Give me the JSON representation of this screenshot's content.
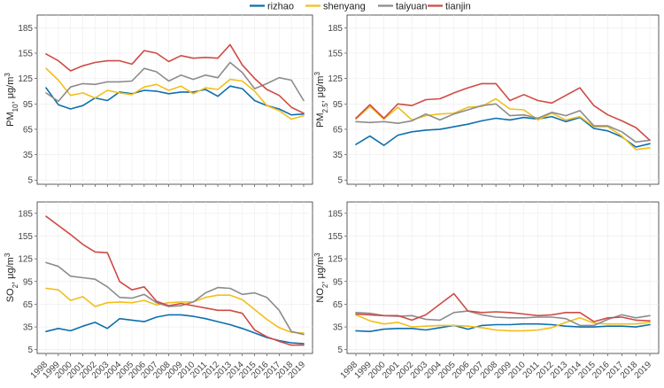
{
  "chart_data": {
    "type": "line",
    "legend": {
      "placement": "top-center",
      "entries": [
        {
          "name": "rizhao",
          "color": "#0d6fae"
        },
        {
          "name": "shenyang",
          "color": "#f2bf1a"
        },
        {
          "name": "taiyuan",
          "color": "#8c8c8c"
        },
        {
          "name": "tianjin",
          "color": "#cf4b45"
        }
      ]
    },
    "x": [
      "1998",
      "1999",
      "2000",
      "2001",
      "2002",
      "2003",
      "2004",
      "2005",
      "2006",
      "2007",
      "2008",
      "2009",
      "2010",
      "2011",
      "2012",
      "2013",
      "2014",
      "2015",
      "2016",
      "2017",
      "2018",
      "2019"
    ],
    "yticks": [
      5,
      35,
      65,
      95,
      125,
      155,
      185
    ],
    "ylim": [
      0,
      200
    ],
    "panels": [
      {
        "id": "pm10",
        "ylabel_main": "PM",
        "ylabel_sub": "10",
        "ylabel_unit": ", μg/m",
        "ylabel_sup": "3",
        "series": [
          {
            "name": "rizhao",
            "values": [
              114,
              94,
              89,
              93,
              102,
              99,
              109,
              107,
              111,
              110,
              107,
              109,
              109,
              112,
              104,
              116,
              113,
              99,
              93,
              89,
              82,
              83
            ]
          },
          {
            "name": "shenyang",
            "values": [
              137,
              123,
              105,
              108,
              102,
              111,
              108,
              106,
              115,
              118,
              111,
              116,
              107,
              114,
              112,
              124,
              122,
              110,
              93,
              87,
              77,
              81
            ]
          },
          {
            "name": "taiyuan",
            "values": [
              108,
              98,
              115,
              119,
              118,
              121,
              121,
              122,
              137,
              133,
              122,
              129,
              124,
              129,
              126,
              144,
              132,
              113,
              119,
              126,
              123,
              99
            ]
          },
          {
            "name": "tianjin",
            "values": [
              154,
              146,
              134,
              140,
              144,
              146,
              146,
              142,
              158,
              155,
              145,
              152,
              149,
              150,
              149,
              165,
              141,
              125,
              112,
              105,
              91,
              84
            ]
          }
        ]
      },
      {
        "id": "pm25",
        "ylabel_main": "PM",
        "ylabel_sub": "2.5",
        "ylabel_unit": ", μg/m",
        "ylabel_sup": "3",
        "series": [
          {
            "name": "rizhao",
            "values": [
              47,
              57,
              46,
              58,
              62,
              64,
              65,
              68,
              71,
              75,
              78,
              76,
              79,
              77,
              80,
              74,
              79,
              66,
              63,
              56,
              44,
              48
            ]
          },
          {
            "name": "shenyang",
            "values": [
              77,
              92,
              77,
              91,
              76,
              81,
              83,
              84,
              91,
              92,
              101,
              89,
              88,
              76,
              84,
              76,
              80,
              68,
              68,
              57,
              41,
              43
            ]
          },
          {
            "name": "taiyuan",
            "values": [
              74,
              73,
              74,
              72,
              75,
              83,
              76,
              83,
              88,
              93,
              95,
              81,
              82,
              78,
              85,
              81,
              87,
              69,
              69,
              62,
              50,
              52
            ]
          },
          {
            "name": "tianjin",
            "values": [
              78,
              94,
              78,
              95,
              93,
              100,
              101,
              108,
              114,
              119,
              119,
              99,
              106,
              99,
              96,
              105,
              114,
              93,
              82,
              75,
              67,
              52
            ]
          }
        ]
      },
      {
        "id": "so2",
        "ylabel_main": "SO",
        "ylabel_sub": "2",
        "ylabel_unit": ", μg/m",
        "ylabel_sup": "3",
        "series": [
          {
            "name": "rizhao",
            "values": [
              29,
              33,
              30,
              36,
              41,
              33,
              46,
              44,
              42,
              48,
              51,
              51,
              49,
              46,
              42,
              38,
              33,
              27,
              21,
              17,
              14,
              13
            ]
          },
          {
            "name": "shenyang",
            "values": [
              86,
              84,
              70,
              75,
              62,
              67,
              68,
              67,
              70,
              64,
              67,
              68,
              68,
              74,
              77,
              77,
              71,
              58,
              45,
              34,
              28,
              27
            ]
          },
          {
            "name": "taiyuan",
            "values": [
              120,
              115,
              102,
              100,
              98,
              88,
              74,
              73,
              78,
              67,
              62,
              63,
              68,
              80,
              87,
              86,
              78,
              80,
              74,
              57,
              29,
              25
            ]
          },
          {
            "name": "tianjin",
            "values": [
              181,
              169,
              157,
              144,
              134,
              133,
              95,
              84,
              88,
              69,
              63,
              66,
              63,
              60,
              57,
              57,
              53,
              31,
              22,
              16,
              11,
              11
            ]
          }
        ]
      },
      {
        "id": "no2",
        "ylabel_main": "NO",
        "ylabel_sub": "2",
        "ylabel_unit": ", μg/m",
        "ylabel_sup": "3",
        "series": [
          {
            "name": "rizhao",
            "values": [
              30,
              29,
              32,
              33,
              33,
              31,
              34,
              37,
              32,
              37,
              38,
              38,
              39,
              39,
              38,
              36,
              35,
              35,
              36,
              36,
              35,
              38
            ]
          },
          {
            "name": "shenyang",
            "values": [
              51,
              43,
              39,
              41,
              35,
              36,
              37,
              37,
              36,
              34,
              31,
              30,
              30,
              31,
              34,
              41,
              47,
              40,
              39,
              39,
              39,
              41
            ]
          },
          {
            "name": "taiyuan",
            "values": [
              54,
              53,
              50,
              49,
              50,
              45,
              44,
              54,
              56,
              51,
              48,
              47,
              47,
              48,
              48,
              46,
              37,
              37,
              45,
              51,
              47,
              50
            ]
          },
          {
            "name": "tianjin",
            "values": [
              52,
              51,
              50,
              50,
              44,
              51,
              65,
              79,
              56,
              54,
              55,
              54,
              52,
              50,
              51,
              54,
              54,
              42,
              47,
              48,
              44,
              43
            ]
          }
        ]
      }
    ]
  }
}
